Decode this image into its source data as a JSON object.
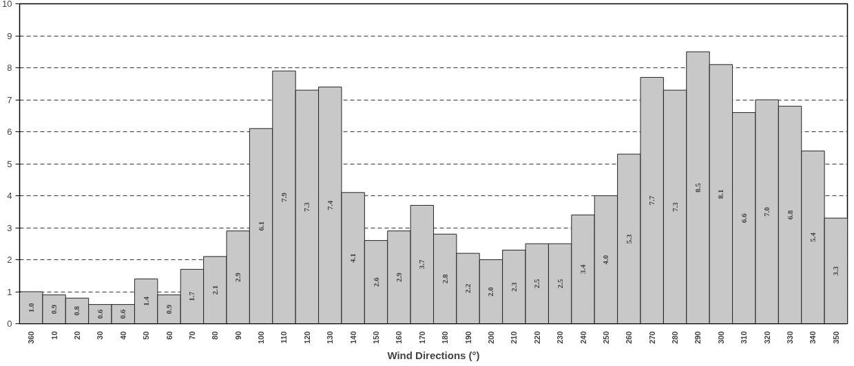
{
  "chart_data": {
    "type": "bar",
    "xlabel": "Wind Directions (°)",
    "categories": [
      "360",
      "10",
      "20",
      "30",
      "40",
      "50",
      "60",
      "70",
      "80",
      "90",
      "100",
      "110",
      "120",
      "130",
      "140",
      "150",
      "160",
      "170",
      "180",
      "190",
      "200",
      "210",
      "220",
      "230",
      "240",
      "250",
      "260",
      "270",
      "280",
      "290",
      "300",
      "310",
      "320",
      "330",
      "340",
      "350"
    ],
    "values": [
      1.0,
      0.9,
      0.8,
      0.6,
      0.6,
      1.4,
      0.9,
      1.7,
      2.1,
      2.9,
      6.1,
      7.9,
      7.3,
      7.4,
      4.1,
      2.6,
      2.9,
      3.7,
      2.8,
      2.2,
      2.0,
      2.3,
      2.5,
      2.5,
      3.4,
      4.0,
      5.3,
      7.7,
      7.3,
      8.5,
      8.1,
      6.6,
      7.0,
      6.8,
      5.4,
      3.3
    ],
    "value_labels": [
      "1.0",
      "0.9",
      "0.8",
      "0.6",
      "0.6",
      "1.4",
      "0.9",
      "1.7",
      "2.1",
      "2.9",
      "6.1",
      "7.9",
      "7.3",
      "7.4",
      "4.1",
      "2.6",
      "2.9",
      "3.7",
      "2.8",
      "2.2",
      "2.0",
      "2.3",
      "2.5",
      "2.5",
      "3.4",
      "4.0",
      "5.3",
      "7.7",
      "7.3",
      "8.5",
      "8.1",
      "6.6",
      "7.0",
      "6.8",
      "5.4",
      "3.3"
    ],
    "color": "#c8c8c8",
    "ylim": [
      0,
      10
    ],
    "yticks": [
      0,
      1,
      2,
      3,
      4,
      5,
      6,
      7,
      8,
      9,
      10
    ],
    "grid": "y",
    "line_style": "dashed"
  }
}
